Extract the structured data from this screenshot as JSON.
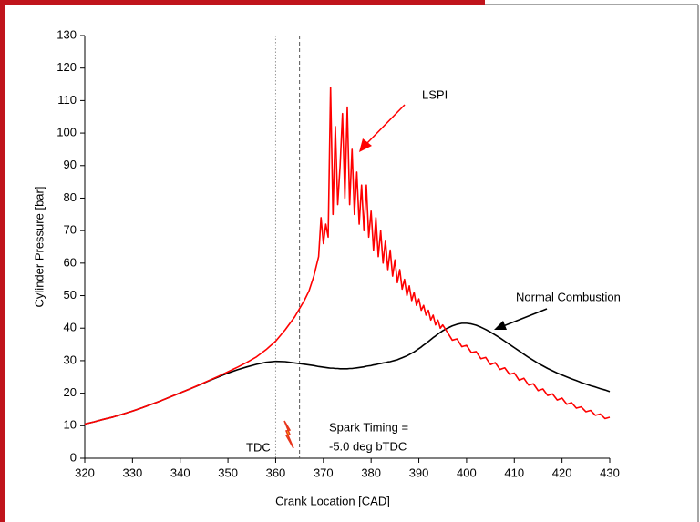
{
  "chart_data": {
    "type": "line",
    "x_label": "Crank Location [CAD]",
    "y_label": "Cylinder Pressure [bar]",
    "xlim": [
      320,
      430
    ],
    "xticks": [
      320,
      330,
      340,
      350,
      360,
      370,
      380,
      390,
      400,
      410,
      420,
      430
    ],
    "ylim": [
      0,
      130
    ],
    "yticks": [
      0,
      10,
      20,
      30,
      40,
      50,
      60,
      70,
      80,
      90,
      100,
      110,
      120,
      130
    ],
    "grid": false,
    "x": [
      320,
      322,
      324,
      326,
      328,
      330,
      332,
      334,
      336,
      338,
      340,
      342,
      344,
      346,
      348,
      350,
      352,
      354,
      356,
      358,
      360,
      362,
      364,
      366,
      367,
      368,
      369,
      369.5,
      370,
      370.5,
      371,
      371.5,
      372,
      372.5,
      373,
      373.5,
      374,
      374.5,
      375,
      375.5,
      376,
      376.5,
      377,
      377.5,
      378,
      378.5,
      379,
      379.5,
      380,
      380.5,
      381,
      381.5,
      382,
      382.5,
      383,
      383.5,
      384,
      384.5,
      385,
      385.5,
      386,
      386.5,
      387,
      387.5,
      388,
      388.5,
      389,
      389.5,
      390,
      390.5,
      391,
      391.5,
      392,
      392.5,
      393,
      393.5,
      394,
      394.5,
      395,
      396,
      397,
      398,
      399,
      400,
      401,
      402,
      403,
      404,
      405,
      406,
      407,
      408,
      409,
      410,
      411,
      412,
      413,
      414,
      415,
      416,
      417,
      418,
      419,
      420,
      421,
      422,
      423,
      424,
      425,
      426,
      427,
      428,
      429,
      430
    ],
    "series": [
      {
        "name": "Normal Combustion",
        "color": "#000000",
        "values": [
          10.5,
          11.2,
          12,
          12.7,
          13.6,
          14.5,
          15.5,
          16.6,
          17.7,
          18.9,
          20.1,
          21.3,
          22.5,
          23.8,
          25,
          26.2,
          27.2,
          28.1,
          28.9,
          29.5,
          29.8,
          29.7,
          29.3,
          28.9,
          28.7,
          28.5,
          28.2,
          28.1,
          28.0,
          27.9,
          27.8,
          27.7,
          27.7,
          27.6,
          27.6,
          27.5,
          27.5,
          27.5,
          27.5,
          27.6,
          27.6,
          27.7,
          27.8,
          27.9,
          28.0,
          28.1,
          28.3,
          28.4,
          28.5,
          28.7,
          28.8,
          29.0,
          29.1,
          29.3,
          29.4,
          29.6,
          29.7,
          29.9,
          30.1,
          30.3,
          30.6,
          30.9,
          31.2,
          31.5,
          31.9,
          32.3,
          32.7,
          33.2,
          33.7,
          34.2,
          34.8,
          35.3,
          35.9,
          36.5,
          37.1,
          37.6,
          38.2,
          38.7,
          39.2,
          40.0,
          40.7,
          41.2,
          41.5,
          41.5,
          41.3,
          40.9,
          40.3,
          39.6,
          38.8,
          37.9,
          37.0,
          36.0,
          35.0,
          34.0,
          33.0,
          32.0,
          31.0,
          30.1,
          29.2,
          28.4,
          27.6,
          26.9,
          26.2,
          25.6,
          25.0,
          24.4,
          23.9,
          23.3,
          22.8,
          22.3,
          21.9,
          21.4,
          21.0,
          20.5
        ]
      },
      {
        "name": "LSPI",
        "color": "#ff0000",
        "values": [
          10.5,
          11.2,
          12,
          12.7,
          13.6,
          14.5,
          15.5,
          16.6,
          17.7,
          18.9,
          20.1,
          21.3,
          22.6,
          23.9,
          25.2,
          26.6,
          28.0,
          29.5,
          31.2,
          33.4,
          36.0,
          39.5,
          43.5,
          48.5,
          51.5,
          56.0,
          62.0,
          74,
          66,
          72,
          68,
          114,
          75,
          102,
          78,
          90,
          106,
          80,
          108,
          78,
          95,
          75,
          88,
          72,
          84,
          70,
          84,
          68,
          76,
          64,
          74,
          62,
          70,
          60,
          67,
          58,
          64,
          56,
          61,
          54,
          58,
          52,
          55,
          50,
          53,
          48.5,
          51,
          47,
          49,
          45.5,
          47,
          44,
          45.5,
          42.5,
          44,
          41,
          42.5,
          40,
          41,
          38.7,
          36.3,
          36.7,
          34.3,
          34.7,
          32.5,
          32.8,
          30.6,
          31.0,
          28.8,
          29.4,
          27.3,
          27.8,
          25.8,
          26.2,
          24.0,
          24.6,
          22.5,
          22.9,
          20.8,
          21.3,
          19.3,
          19.8,
          17.9,
          18.5,
          16.6,
          17.1,
          15.4,
          15.8,
          14.3,
          14.7,
          13.2,
          13.6,
          12.2,
          12.6
        ]
      }
    ],
    "reference_lines": [
      {
        "x": 360,
        "style": "dotted"
      },
      {
        "x": 365,
        "style": "dashed"
      }
    ],
    "annotations": [
      "LSPI",
      "Normal Combustion",
      "Spark Timing =",
      "-5.0 deg bTDC",
      "TDC"
    ]
  }
}
